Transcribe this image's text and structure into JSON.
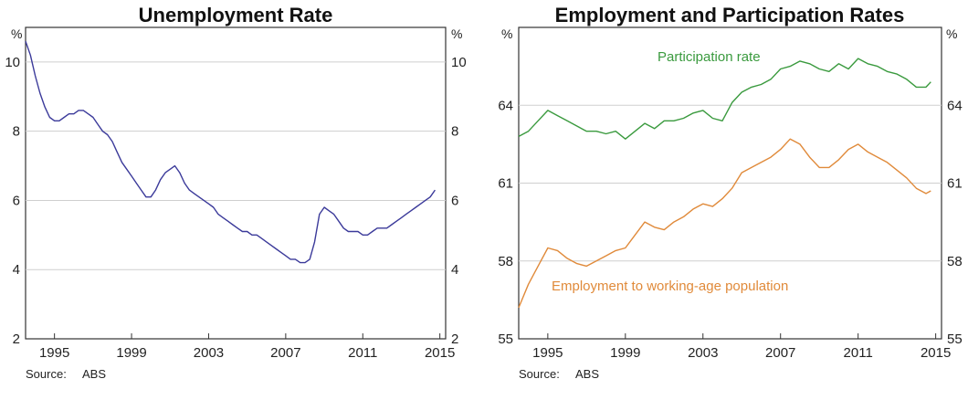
{
  "chart_data": [
    {
      "type": "line",
      "title": "Unemployment Rate",
      "unit_left": "%",
      "unit_right": "%",
      "source_label": "Source:",
      "source_value": "ABS",
      "xlim": [
        1993.5,
        2015.3
      ],
      "ylim": [
        2,
        11
      ],
      "yticks": [
        2,
        4,
        6,
        8,
        10
      ],
      "xticks": [
        1995,
        1999,
        2003,
        2007,
        2011,
        2015
      ],
      "grid": true,
      "series": [
        {
          "name": "",
          "color": "#3b3a9a",
          "x": [
            1993.5,
            1993.75,
            1994.0,
            1994.25,
            1994.5,
            1994.75,
            1995.0,
            1995.25,
            1995.5,
            1995.75,
            1996.0,
            1996.25,
            1996.5,
            1996.75,
            1997.0,
            1997.25,
            1997.5,
            1997.75,
            1998.0,
            1998.25,
            1998.5,
            1998.75,
            1999.0,
            1999.25,
            1999.5,
            1999.75,
            2000.0,
            2000.25,
            2000.5,
            2000.75,
            2001.0,
            2001.25,
            2001.5,
            2001.75,
            2002.0,
            2002.25,
            2002.5,
            2002.75,
            2003.0,
            2003.25,
            2003.5,
            2003.75,
            2004.0,
            2004.25,
            2004.5,
            2004.75,
            2005.0,
            2005.25,
            2005.5,
            2005.75,
            2006.0,
            2006.25,
            2006.5,
            2006.75,
            2007.0,
            2007.25,
            2007.5,
            2007.75,
            2008.0,
            2008.25,
            2008.5,
            2008.75,
            2009.0,
            2009.25,
            2009.5,
            2009.75,
            2010.0,
            2010.25,
            2010.5,
            2010.75,
            2011.0,
            2011.25,
            2011.5,
            2011.75,
            2012.0,
            2012.25,
            2012.5,
            2012.75,
            2013.0,
            2013.25,
            2013.5,
            2013.75,
            2014.0,
            2014.25,
            2014.5,
            2014.75
          ],
          "values": [
            10.6,
            10.2,
            9.6,
            9.1,
            8.7,
            8.4,
            8.3,
            8.3,
            8.4,
            8.5,
            8.5,
            8.6,
            8.6,
            8.5,
            8.4,
            8.2,
            8.0,
            7.9,
            7.7,
            7.4,
            7.1,
            6.9,
            6.7,
            6.5,
            6.3,
            6.1,
            6.1,
            6.3,
            6.6,
            6.8,
            6.9,
            7.0,
            6.8,
            6.5,
            6.3,
            6.2,
            6.1,
            6.0,
            5.9,
            5.8,
            5.6,
            5.5,
            5.4,
            5.3,
            5.2,
            5.1,
            5.1,
            5.0,
            5.0,
            4.9,
            4.8,
            4.7,
            4.6,
            4.5,
            4.4,
            4.3,
            4.3,
            4.2,
            4.2,
            4.3,
            4.8,
            5.6,
            5.8,
            5.7,
            5.6,
            5.4,
            5.2,
            5.1,
            5.1,
            5.1,
            5.0,
            5.0,
            5.1,
            5.2,
            5.2,
            5.2,
            5.3,
            5.4,
            5.5,
            5.6,
            5.7,
            5.8,
            5.9,
            6.0,
            6.1,
            6.3
          ]
        }
      ]
    },
    {
      "type": "line",
      "title": "Employment and Participation Rates",
      "unit_left": "%",
      "unit_right": "%",
      "source_label": "Source:",
      "source_value": "ABS",
      "xlim": [
        1993.5,
        2015.3
      ],
      "ylim": [
        55,
        67
      ],
      "yticks": [
        55,
        58,
        61,
        64
      ],
      "xticks": [
        1995,
        1999,
        2003,
        2007,
        2011,
        2015
      ],
      "grid": true,
      "annotations": [
        "Participation rate",
        "Employment to working-age population"
      ],
      "series": [
        {
          "name": "Participation rate",
          "color": "#3a9a3e",
          "x": [
            1993.5,
            1994.0,
            1994.5,
            1995.0,
            1995.5,
            1996.0,
            1996.5,
            1997.0,
            1997.5,
            1998.0,
            1998.5,
            1999.0,
            1999.5,
            2000.0,
            2000.5,
            2001.0,
            2001.5,
            2002.0,
            2002.5,
            2003.0,
            2003.5,
            2004.0,
            2004.5,
            2005.0,
            2005.5,
            2006.0,
            2006.5,
            2007.0,
            2007.5,
            2008.0,
            2008.5,
            2009.0,
            2009.5,
            2010.0,
            2010.5,
            2011.0,
            2011.5,
            2012.0,
            2012.5,
            2013.0,
            2013.5,
            2014.0,
            2014.5,
            2014.75
          ],
          "values": [
            62.8,
            63.0,
            63.4,
            63.8,
            63.6,
            63.4,
            63.2,
            63.0,
            63.0,
            62.9,
            63.0,
            62.7,
            63.0,
            63.3,
            63.1,
            63.4,
            63.4,
            63.5,
            63.7,
            63.8,
            63.5,
            63.4,
            64.1,
            64.5,
            64.7,
            64.8,
            65.0,
            65.4,
            65.5,
            65.7,
            65.6,
            65.4,
            65.3,
            65.6,
            65.4,
            65.8,
            65.6,
            65.5,
            65.3,
            65.2,
            65.0,
            64.7,
            64.7,
            64.9
          ]
        },
        {
          "name": "Employment to working-age population",
          "color": "#e08a3a",
          "x": [
            1993.5,
            1994.0,
            1994.5,
            1995.0,
            1995.5,
            1996.0,
            1996.5,
            1997.0,
            1997.5,
            1998.0,
            1998.5,
            1999.0,
            1999.5,
            2000.0,
            2000.5,
            2001.0,
            2001.5,
            2002.0,
            2002.5,
            2003.0,
            2003.5,
            2004.0,
            2004.5,
            2005.0,
            2005.5,
            2006.0,
            2006.5,
            2007.0,
            2007.5,
            2008.0,
            2008.5,
            2009.0,
            2009.5,
            2010.0,
            2010.5,
            2011.0,
            2011.5,
            2012.0,
            2012.5,
            2013.0,
            2013.5,
            2014.0,
            2014.5,
            2014.75
          ],
          "values": [
            56.2,
            57.1,
            57.8,
            58.5,
            58.4,
            58.1,
            57.9,
            57.8,
            58.0,
            58.2,
            58.4,
            58.5,
            59.0,
            59.5,
            59.3,
            59.2,
            59.5,
            59.7,
            60.0,
            60.2,
            60.1,
            60.4,
            60.8,
            61.4,
            61.6,
            61.8,
            62.0,
            62.3,
            62.7,
            62.5,
            62.0,
            61.6,
            61.6,
            61.9,
            62.3,
            62.5,
            62.2,
            62.0,
            61.8,
            61.5,
            61.2,
            60.8,
            60.6,
            60.7
          ]
        }
      ]
    }
  ]
}
